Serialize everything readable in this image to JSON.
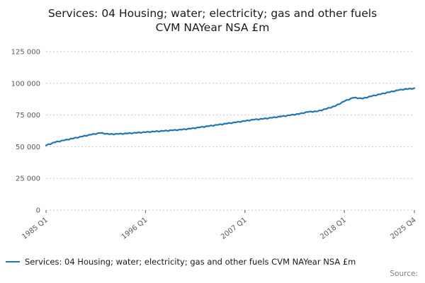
{
  "title": {
    "line1": "Services: 04 Housing; water; electricity; gas and other fuels",
    "line2": "CVM NAYear NSA £m"
  },
  "legend": {
    "label": "Services: 04 Housing; water; electricity; gas and other fuels CVM NAYear NSA £m"
  },
  "source": {
    "label": "Source:"
  },
  "chart_data": {
    "type": "line",
    "title": "Services: 04 Housing; water; electricity; gas and other fuels CVM NAYear NSA £m",
    "frequency": "quarterly",
    "x_start": "1985 Q1",
    "x_end": "2025 Q4",
    "line_color": "#1f77b4",
    "grid_color": "#c9c9c9",
    "tick_text_color": "#595959",
    "ylim": [
      0,
      130000
    ],
    "legend_position": "bottom-left",
    "y_ticks": [
      {
        "label": "0",
        "value": 0
      },
      {
        "label": "25 000",
        "value": 25000
      },
      {
        "label": "50 000",
        "value": 50000
      },
      {
        "label": "75 000",
        "value": 75000
      },
      {
        "label": "100 000",
        "value": 100000
      },
      {
        "label": "125 000",
        "value": 125000
      }
    ],
    "x_ticks": [
      {
        "label": "1985 Q1",
        "index": 0
      },
      {
        "label": "1996 Q1",
        "index": 44
      },
      {
        "label": "2007 Q1",
        "index": 88
      },
      {
        "label": "2018 Q1",
        "index": 132
      },
      {
        "label": "2025 Q4",
        "index": 163
      }
    ],
    "values": [
      51000,
      51975,
      52000,
      53175,
      53500,
      54225,
      54000,
      54925,
      55000,
      55725,
      55500,
      56425,
      56500,
      57225,
      57000,
      57925,
      58000,
      58725,
      58500,
      59425,
      59500,
      60175,
      59900,
      60775,
      60800,
      60900,
      60050,
      60350,
      59800,
      60200,
      59650,
      60250,
      60000,
      60450,
      59950,
      60600,
      60400,
      60875,
      60400,
      61075,
      60900,
      61375,
      60900,
      61575,
      61400,
      61875,
      61400,
      62075,
      61900,
      62375,
      61900,
      62575,
      62400,
      62875,
      62400,
      63075,
      62900,
      63375,
      62900,
      63575,
      63400,
      63950,
      63550,
      64300,
      64200,
      64800,
      64450,
      65250,
      65200,
      65800,
      65450,
      66250,
      66200,
      66800,
      66450,
      67250,
      67200,
      67800,
      67450,
      68250,
      68200,
      68800,
      68450,
      69250,
      69200,
      69800,
      69450,
      70250,
      70200,
      70825,
      70500,
      71325,
      71300,
      71800,
      71350,
      72050,
      71900,
      72475,
      72100,
      72875,
      72800,
      73400,
      73050,
      73850,
      73800,
      74400,
      74050,
      74850,
      74800,
      75400,
      75050,
      75850,
      75800,
      76550,
      76350,
      77300,
      77400,
      77850,
      77400,
      78000,
      77800,
      78650,
      78550,
      79600,
      79800,
      80700,
      80650,
      81750,
      82000,
      83300,
      83650,
      85150,
      85800,
      86850,
      87000,
      88200,
      88600,
      88775,
      88100,
      88375,
      87900,
      88725,
      88600,
      89625,
      89800,
      90550,
      90350,
      91300,
      91400,
      92150,
      91950,
      92900,
      93000,
      93750,
      93550,
      94500,
      94600,
      95150,
      94850,
      95700,
      95400,
      95950,
      95550,
      96200
    ]
  }
}
